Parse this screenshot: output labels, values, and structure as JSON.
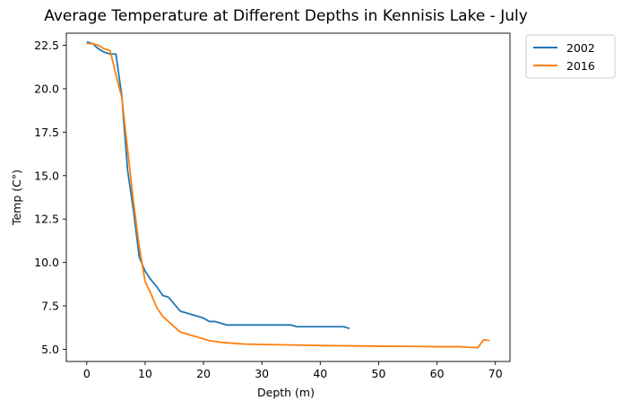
{
  "chart_data": {
    "type": "line",
    "title": "Average Temperature at Different Depths in Kennisis Lake - July",
    "xlabel": "Depth (m)",
    "ylabel": "Temp (C°)",
    "xlim": [
      -3.5,
      72.5
    ],
    "ylim": [
      4.3,
      23.2
    ],
    "xticks": [
      0,
      10,
      20,
      30,
      40,
      50,
      60,
      70
    ],
    "xtick_labels": [
      "0",
      "10",
      "20",
      "30",
      "40",
      "50",
      "60",
      "70"
    ],
    "yticks": [
      5.0,
      7.5,
      10.0,
      12.5,
      15.0,
      17.5,
      20.0,
      22.5
    ],
    "ytick_labels": [
      "5.0",
      "7.5",
      "10.0",
      "12.5",
      "15.0",
      "17.5",
      "20.0",
      "22.5"
    ],
    "grid": false,
    "legend_position": "outside-top-right",
    "series": [
      {
        "name": "2002",
        "color": "#1f77b4",
        "x": [
          0,
          1,
          2,
          3,
          4,
          5,
          6,
          7,
          8,
          9,
          10,
          11,
          12,
          13,
          14,
          15,
          16,
          17,
          18,
          19,
          20,
          21,
          22,
          23,
          24,
          25,
          30,
          35,
          36,
          40,
          44,
          45
        ],
        "y": [
          22.7,
          22.6,
          22.3,
          22.1,
          22.0,
          22.0,
          19.6,
          15.3,
          13.0,
          10.3,
          9.5,
          9.0,
          8.6,
          8.1,
          8.0,
          7.6,
          7.2,
          7.1,
          7.0,
          6.9,
          6.8,
          6.6,
          6.6,
          6.5,
          6.4,
          6.4,
          6.4,
          6.4,
          6.3,
          6.3,
          6.3,
          6.2
        ]
      },
      {
        "name": "2016",
        "color": "#ff7f0e",
        "x": [
          0,
          1,
          2,
          3,
          4,
          5,
          6,
          7,
          8,
          9,
          10,
          11,
          12,
          13,
          14,
          15,
          16,
          17,
          18,
          19,
          20,
          21,
          22,
          23,
          25,
          27,
          30,
          35,
          40,
          45,
          50,
          55,
          60,
          64,
          66,
          67,
          68,
          69
        ],
        "y": [
          22.6,
          22.6,
          22.5,
          22.3,
          22.2,
          20.8,
          19.5,
          16.5,
          13.5,
          10.9,
          8.9,
          8.2,
          7.4,
          6.9,
          6.6,
          6.3,
          6.0,
          5.9,
          5.8,
          5.7,
          5.6,
          5.5,
          5.45,
          5.4,
          5.35,
          5.3,
          5.28,
          5.25,
          5.22,
          5.2,
          5.18,
          5.17,
          5.15,
          5.15,
          5.1,
          5.1,
          5.55,
          5.5
        ]
      }
    ]
  }
}
